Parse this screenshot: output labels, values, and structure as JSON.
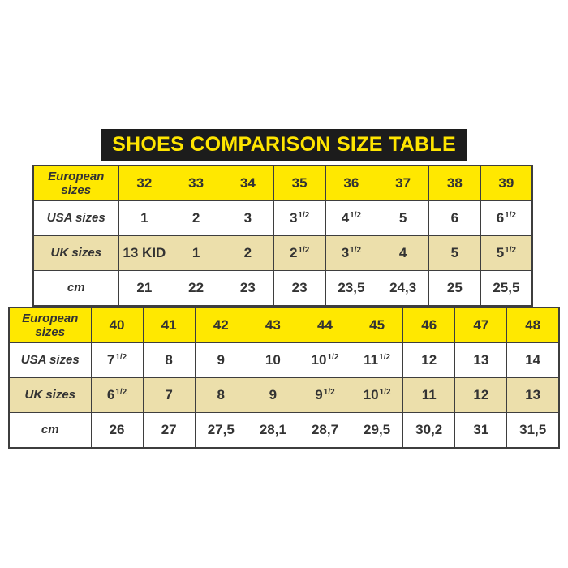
{
  "title": "SHOES COMPARISON SIZE TABLE",
  "colors": {
    "title_bg": "#1c1c1c",
    "title_text": "#ffe500",
    "row_yellow": "#ffe800",
    "row_beige": "#ecdfab",
    "row_white": "#ffffff",
    "border": "#3e3e3e",
    "cell_text": "#333333"
  },
  "chart_data": [
    {
      "type": "table",
      "name": "sizes-32-39",
      "rows": [
        {
          "label": "European sizes",
          "style": "yellow",
          "cells": [
            "32",
            "33",
            "34",
            "35",
            "36",
            "37",
            "38",
            "39"
          ]
        },
        {
          "label": "USA sizes",
          "style": "white",
          "cells": [
            "1",
            "2",
            "3",
            "3^1/2",
            "4^1/2",
            "5",
            "6",
            "6^1/2"
          ]
        },
        {
          "label": "UK sizes",
          "style": "beige",
          "cells": [
            "13 KID",
            "1",
            "2",
            "2^1/2",
            "3^1/2",
            "4",
            "5",
            "5^1/2"
          ]
        },
        {
          "label": "cm",
          "style": "white",
          "cells": [
            "21",
            "22",
            "23",
            "23",
            "23,5",
            "24,3",
            "25",
            "25,5"
          ]
        }
      ]
    },
    {
      "type": "table",
      "name": "sizes-40-48",
      "rows": [
        {
          "label": "European sizes",
          "style": "yellow",
          "cells": [
            "40",
            "41",
            "42",
            "43",
            "44",
            "45",
            "46",
            "47",
            "48"
          ]
        },
        {
          "label": "USA sizes",
          "style": "white",
          "cells": [
            "7^1/2",
            "8",
            "9",
            "10",
            "10^1/2",
            "11^1/2",
            "12",
            "13",
            "14"
          ]
        },
        {
          "label": "UK sizes",
          "style": "beige",
          "cells": [
            "6^1/2",
            "7",
            "8",
            "9",
            "9^1/2",
            "10^1/2",
            "11",
            "12",
            "13"
          ]
        },
        {
          "label": "cm",
          "style": "white",
          "cells": [
            "26",
            "27",
            "27,5",
            "28,1",
            "28,7",
            "29,5",
            "30,2",
            "31",
            "31,5"
          ]
        }
      ]
    }
  ]
}
